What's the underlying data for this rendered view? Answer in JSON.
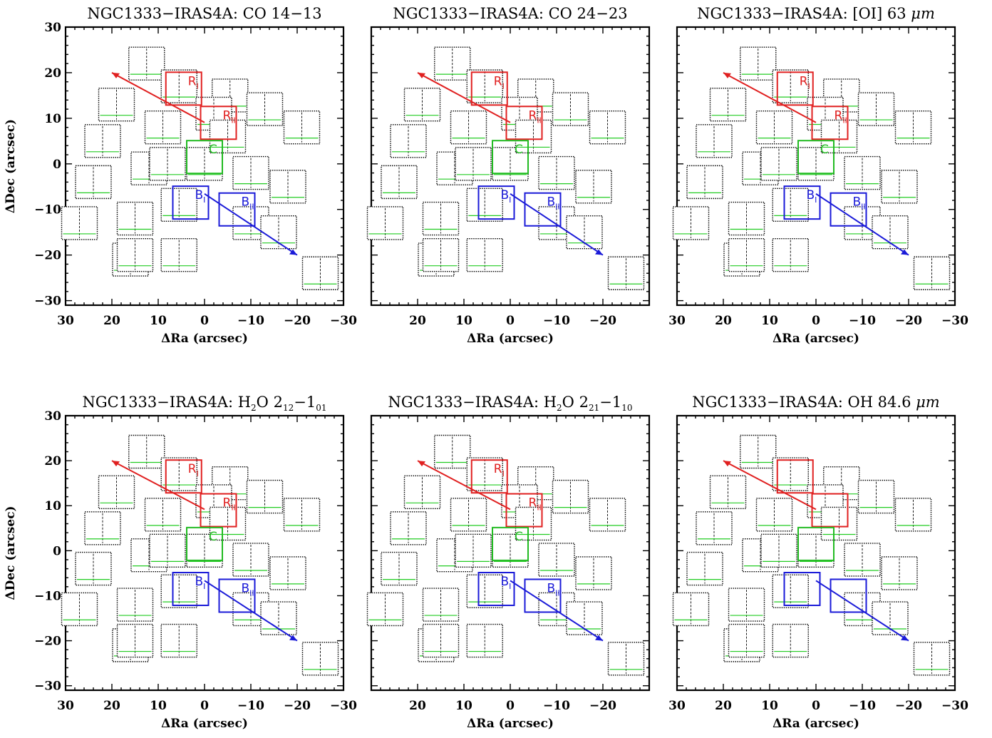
{
  "chart_data": [
    {
      "type": "spectral-map",
      "title": "NGC1333−IRAS4A: CO 14−13",
      "title_main": "NGC1333−IRAS4A: CO 14−13",
      "title_tail": "",
      "line": "CO 14−13",
      "xlabel": "ΔRa (arcsec)",
      "ylabel": "ΔDec (arcsec)",
      "xlim": [
        30,
        -30
      ],
      "ylim": [
        -31,
        30
      ],
      "xticks": [
        30,
        20,
        10,
        0,
        -10,
        -20,
        -30
      ],
      "yticks": [
        30,
        20,
        10,
        0,
        -10,
        -20,
        -30
      ],
      "xticklabels": [
        "30",
        "20",
        "10",
        "0",
        "−10",
        "−20",
        "−30"
      ],
      "yticklabels": [
        "30",
        "20",
        "10",
        "0",
        "−10",
        "−20",
        "−30"
      ],
      "region_labels": [
        "R",
        "I",
        "R",
        "II",
        "C",
        "B",
        "I",
        "B",
        "II"
      ]
    },
    {
      "type": "spectral-map",
      "title": "NGC1333−IRAS4A: CO 24−23",
      "title_main": "NGC1333−IRAS4A: CO 24−23",
      "title_tail": "",
      "line": "CO 24−23",
      "xlabel": "ΔRa (arcsec)",
      "ylabel": "",
      "xlim": [
        30,
        -30
      ],
      "ylim": [
        -31,
        30
      ],
      "xticks": [
        20,
        10,
        0,
        -10,
        -20
      ],
      "yticks": [],
      "xticklabels": [
        "20",
        "10",
        "0",
        "−10",
        "−20"
      ],
      "yticklabels": [],
      "region_labels": [
        "R",
        "I",
        "R",
        "II",
        "C",
        "B",
        "I",
        "B",
        "II"
      ]
    },
    {
      "type": "spectral-map",
      "title": "NGC1333−IRAS4A: [OI] 63 μm",
      "title_main": "NGC1333−IRAS4A: [OI] 63 ",
      "title_tail": "m",
      "line": "[OI] 63 μm",
      "xlabel": "ΔRa (arcsec)",
      "ylabel": "",
      "xlim": [
        30,
        -30
      ],
      "ylim": [
        -31,
        30
      ],
      "xticks": [
        30,
        20,
        10,
        0,
        -10,
        -20,
        -30
      ],
      "yticks": [],
      "xticklabels": [
        "30",
        "20",
        "10",
        "0",
        "−10",
        "−20",
        "−30"
      ],
      "yticklabels": [],
      "region_labels": [
        "R",
        "I",
        "R",
        "II",
        "C",
        "B",
        "I",
        "B",
        "II"
      ]
    },
    {
      "type": "spectral-map",
      "title": "NGC1333−IRAS4A: H₂O 2₁₂−1₀₁",
      "title_main": "NGC1333−IRAS4A: H",
      "title_tail": "",
      "line": "H₂O 2₁₂−1₀₁",
      "title_parts": [
        "2",
        "O 2",
        "12",
        "−1",
        "01"
      ],
      "xlabel": "ΔRa (arcsec)",
      "ylabel": "ΔDec (arcsec)",
      "xlim": [
        30,
        -30
      ],
      "ylim": [
        -31,
        30
      ],
      "xticks": [
        30,
        20,
        10,
        0,
        -10,
        -20,
        -30
      ],
      "yticks": [
        30,
        20,
        10,
        0,
        -10,
        -20,
        -30
      ],
      "xticklabels": [
        "30",
        "20",
        "10",
        "0",
        "−10",
        "−20",
        "−30"
      ],
      "yticklabels": [
        "30",
        "20",
        "10",
        "0",
        "−10",
        "−20",
        "−30"
      ],
      "region_labels": [
        "R",
        "I",
        "R",
        "II",
        "C",
        "B",
        "I",
        "B",
        "II"
      ]
    },
    {
      "type": "spectral-map",
      "title": "NGC1333−IRAS4A: H₂O 2₂₁−1₁₀",
      "title_main": "NGC1333−IRAS4A: H",
      "title_tail": "",
      "line": "H₂O 2₂₁−1₁₀",
      "title_parts": [
        "2",
        "O 2",
        "21",
        "−1",
        "10"
      ],
      "xlabel": "ΔRa (arcsec)",
      "ylabel": "",
      "xlim": [
        30,
        -30
      ],
      "ylim": [
        -31,
        30
      ],
      "xticks": [
        20,
        10,
        0,
        -10,
        -20
      ],
      "yticks": [],
      "xticklabels": [
        "20",
        "10",
        "0",
        "−10",
        "−20"
      ],
      "yticklabels": [],
      "region_labels": [
        "R",
        "I",
        "R",
        "II",
        "C",
        "B",
        "I",
        "B",
        "II"
      ]
    },
    {
      "type": "spectral-map",
      "title": "NGC1333−IRAS4A: OH 84.6 μm",
      "title_main": "NGC1333−IRAS4A: OH 84.6 ",
      "title_tail": "m",
      "line": "OH 84.6 μm",
      "xlabel": "ΔRa (arcsec)",
      "ylabel": "",
      "xlim": [
        30,
        -30
      ],
      "ylim": [
        -31,
        30
      ],
      "xticks": [
        30,
        20,
        10,
        0,
        -10,
        -20,
        -30
      ],
      "yticks": [],
      "xticklabels": [
        "30",
        "20",
        "10",
        "0",
        "−10",
        "−20",
        "−30"
      ],
      "yticklabels": [],
      "region_labels": []
    }
  ],
  "colors": {
    "red_lobe": "#e02020",
    "blue_lobe": "#1a1ad8",
    "center": "#22bb22",
    "spectrum": "#000000",
    "baseline": "#22cc22"
  }
}
